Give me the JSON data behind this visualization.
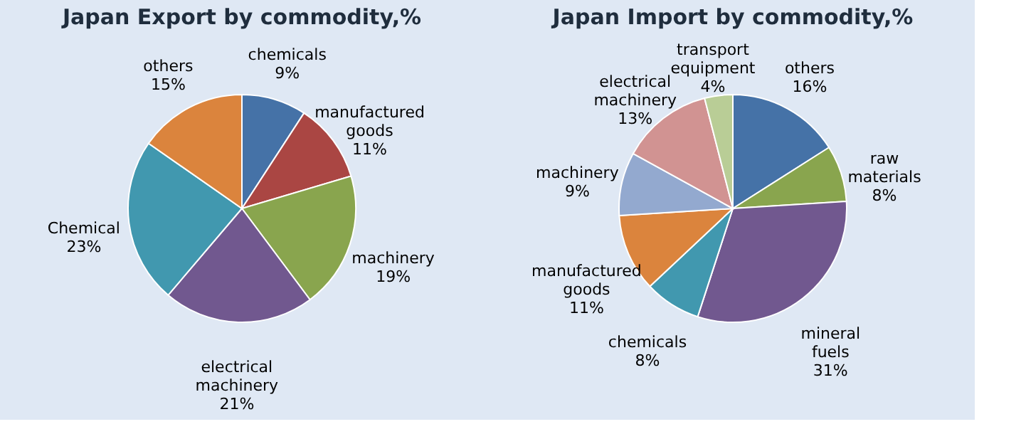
{
  "chart_data": [
    {
      "type": "pie",
      "title": "Japan Export by commodity,%",
      "categories": [
        "chemicals",
        "manufactured goods",
        "machinery",
        "electrical machinery",
        "Chemical",
        "others"
      ],
      "values": [
        9,
        11,
        19,
        21,
        23,
        15
      ],
      "value_labels": [
        "9%",
        "11%",
        "19%",
        "21%",
        "23%",
        "15%"
      ],
      "colors": [
        "#4572a7",
        "#aa4643",
        "#89a54e",
        "#71588f",
        "#4198af",
        "#db843d"
      ]
    },
    {
      "type": "pie",
      "title": "Japan Import by commodity,%",
      "categories": [
        "others",
        "raw materials",
        "mineral fuels",
        "chemicals",
        "manufactured goods",
        "machinery",
        "electrical machinery",
        "transport equipment"
      ],
      "values": [
        16,
        8,
        31,
        8,
        11,
        9,
        13,
        4
      ],
      "value_labels": [
        "16%",
        "8%",
        "31%",
        "8%",
        "11%",
        "9%",
        "13%",
        "4%"
      ],
      "colors": [
        "#4572a7",
        "#89a54e",
        "#71588f",
        "#4198af",
        "#db843d",
        "#93a9cf",
        "#d19392",
        "#b9cd96"
      ]
    }
  ]
}
